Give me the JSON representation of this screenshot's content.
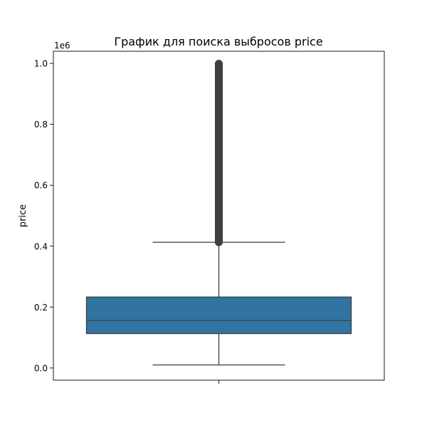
{
  "chart_data": {
    "type": "box",
    "title": "График для поиска выбросов price",
    "ylabel": "price",
    "xlabel": "",
    "y_offset_label": "1e6",
    "ylim": [
      -0.04,
      1.04
    ],
    "y_ticks": [
      {
        "value": 0.0,
        "label": "0.0"
      },
      {
        "value": 0.2,
        "label": "0.2"
      },
      {
        "value": 0.4,
        "label": "0.4"
      },
      {
        "value": 0.6,
        "label": "0.6"
      },
      {
        "value": 0.8,
        "label": "0.8"
      },
      {
        "value": 1.0,
        "label": "1.0"
      }
    ],
    "box": {
      "whisker_low": 0.01,
      "q1": 0.113,
      "median": 0.156,
      "q3": 0.233,
      "whisker_high": 0.413
    },
    "outliers": {
      "min": 0.413,
      "max": 0.999
    },
    "grid": false,
    "colors": {
      "box_fill": "#3274a1",
      "line": "#3f3f3f",
      "outlier": "#3f3f3f",
      "axes": "#000000"
    }
  }
}
